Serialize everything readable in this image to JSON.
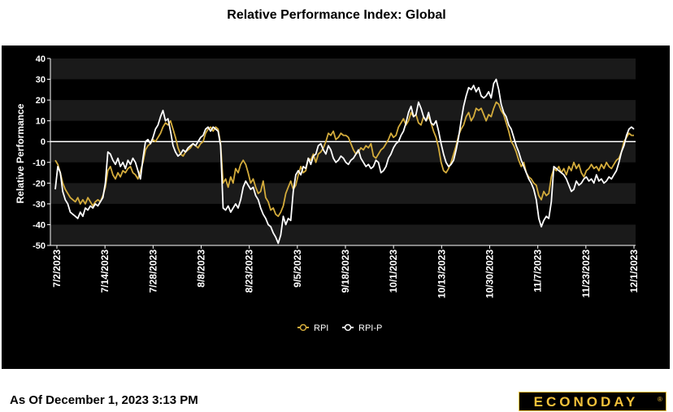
{
  "page": {
    "as_of": "As Of December 1, 2023 3:13 PM",
    "logo_text": "ECONODAY"
  },
  "colors": {
    "background": "#000000",
    "band": "#1a1a1a",
    "rpi": "#d4ac3c",
    "rpi_p": "#ffffff",
    "zero_line": "#ffffff",
    "logo_gold": "#f2c13a"
  },
  "chart_data": {
    "type": "line",
    "title": "Relative Performance Index: Global",
    "ylabel": "Relative Performance",
    "xlabel": "",
    "ylim": [
      -50,
      40
    ],
    "yticks": [
      -50,
      -40,
      -30,
      -20,
      -10,
      0,
      10,
      20,
      30,
      40
    ],
    "x_tick_labels": [
      "7/2/2023",
      "7/14/2023",
      "7/28/2023",
      "8/8/2023",
      "8/23/2023",
      "9/5/2023",
      "9/18/2023",
      "10/1/2023",
      "10/13/2023",
      "10/30/2023",
      "11/7/2023",
      "11/23/2023",
      "12/1/2023"
    ],
    "legend_position": "bottom-center",
    "series": [
      {
        "name": "RPI",
        "values": [
          -9,
          -11,
          -15,
          -20,
          -23,
          -25,
          -27,
          -28,
          -29,
          -27,
          -30,
          -28,
          -30,
          -27,
          -29,
          -31,
          -29,
          -28,
          -29,
          -26,
          -22,
          -14,
          -12,
          -16,
          -18,
          -15,
          -17,
          -14,
          -15,
          -13,
          -12,
          -15,
          -16,
          -18,
          -14,
          -10,
          -4,
          -2,
          -1,
          1,
          0,
          2,
          4,
          7,
          9,
          8,
          10,
          6,
          2,
          -3,
          -6,
          -7,
          -5,
          -4,
          -3,
          -1,
          -2,
          -3,
          -1,
          0,
          4,
          6,
          7,
          5,
          7,
          6,
          -1,
          -20,
          -18,
          -22,
          -17,
          -20,
          -13,
          -15,
          -11,
          -9,
          -11,
          -15,
          -20,
          -18,
          -22,
          -25,
          -24,
          -19,
          -27,
          -29,
          -33,
          -32,
          -35,
          -36,
          -34,
          -31,
          -25,
          -22,
          -19,
          -23,
          -21,
          -16,
          -12,
          -15,
          -14,
          -8,
          -9,
          -6,
          -10,
          -6,
          -5,
          -3,
          0,
          4,
          3,
          5,
          1,
          2,
          4,
          3,
          3,
          2,
          -1,
          -4,
          -6,
          -5,
          -3,
          -4,
          -2,
          -3,
          -1,
          -7,
          -8,
          -6,
          -4,
          -3,
          -1,
          1,
          4,
          2,
          3,
          7,
          9,
          11,
          8,
          10,
          14,
          12,
          13,
          9,
          8,
          12,
          10,
          12,
          9,
          5,
          2,
          -3,
          -10,
          -14,
          -15,
          -13,
          -10,
          -6,
          -2,
          3,
          6,
          8,
          12,
          14,
          10,
          12,
          16,
          15,
          16,
          13,
          10,
          13,
          12,
          16,
          19,
          18,
          15,
          13,
          9,
          5,
          0,
          -2,
          -5,
          -9,
          -12,
          -10,
          -15,
          -17,
          -18,
          -20,
          -21,
          -26,
          -28,
          -24,
          -26,
          -25,
          -17,
          -13,
          -14,
          -12,
          -15,
          -13,
          -16,
          -12,
          -14,
          -10,
          -13,
          -11,
          -15,
          -17,
          -14,
          -13,
          -11,
          -13,
          -12,
          -14,
          -11,
          -13,
          -10,
          -12,
          -13,
          -11,
          -9,
          -8,
          -5,
          0,
          2,
          4,
          3,
          3
        ]
      },
      {
        "name": "RPI-P",
        "values": [
          -23,
          -12,
          -15,
          -24,
          -28,
          -30,
          -34,
          -35,
          -36,
          -37,
          -34,
          -36,
          -32,
          -33,
          -31,
          -32,
          -30,
          -31,
          -29,
          -27,
          -20,
          -5,
          -6,
          -9,
          -11,
          -8,
          -12,
          -10,
          -13,
          -9,
          -11,
          -8,
          -10,
          -14,
          -18,
          -8,
          0,
          1,
          -1,
          2,
          6,
          8,
          12,
          15,
          10,
          11,
          5,
          -2,
          -5,
          -7,
          -6,
          -4,
          -5,
          -3,
          -2,
          -1,
          -2,
          0,
          2,
          3,
          6,
          7,
          5,
          7,
          6,
          5,
          -2,
          -32,
          -33,
          -31,
          -34,
          -32,
          -30,
          -32,
          -28,
          -22,
          -19,
          -21,
          -23,
          -22,
          -26,
          -28,
          -32,
          -35,
          -37,
          -40,
          -41,
          -44,
          -46,
          -49,
          -45,
          -36,
          -40,
          -37,
          -38,
          -24,
          -16,
          -14,
          -16,
          -12,
          -13,
          -8,
          -11,
          -7,
          -6,
          -2,
          -1,
          -4,
          -6,
          -2,
          -4,
          -8,
          -10,
          -9,
          -7,
          -8,
          -10,
          -11,
          -9,
          -8,
          -6,
          -4,
          -8,
          -10,
          -12,
          -11,
          -13,
          -12,
          -9,
          -10,
          -15,
          -14,
          -12,
          -8,
          -6,
          -3,
          -1,
          0,
          3,
          5,
          9,
          14,
          17,
          12,
          13,
          19,
          16,
          12,
          10,
          14,
          9,
          8,
          10,
          5,
          -1,
          -6,
          -10,
          -12,
          -11,
          -9,
          -4,
          2,
          10,
          17,
          22,
          26,
          25,
          27,
          24,
          26,
          22,
          21,
          22,
          24,
          21,
          28,
          30,
          25,
          18,
          14,
          12,
          8,
          6,
          2,
          -2,
          -5,
          -9,
          -12,
          -15,
          -18,
          -20,
          -23,
          -28,
          -37,
          -41,
          -38,
          -36,
          -37,
          -29,
          -12,
          -13,
          -14,
          -15,
          -16,
          -18,
          -21,
          -24,
          -23,
          -19,
          -21,
          -20,
          -18,
          -17,
          -19,
          -18,
          -20,
          -16,
          -19,
          -18,
          -20,
          -19,
          -17,
          -18,
          -16,
          -14,
          -10,
          -5,
          -2,
          3,
          6,
          7,
          6
        ]
      }
    ]
  }
}
